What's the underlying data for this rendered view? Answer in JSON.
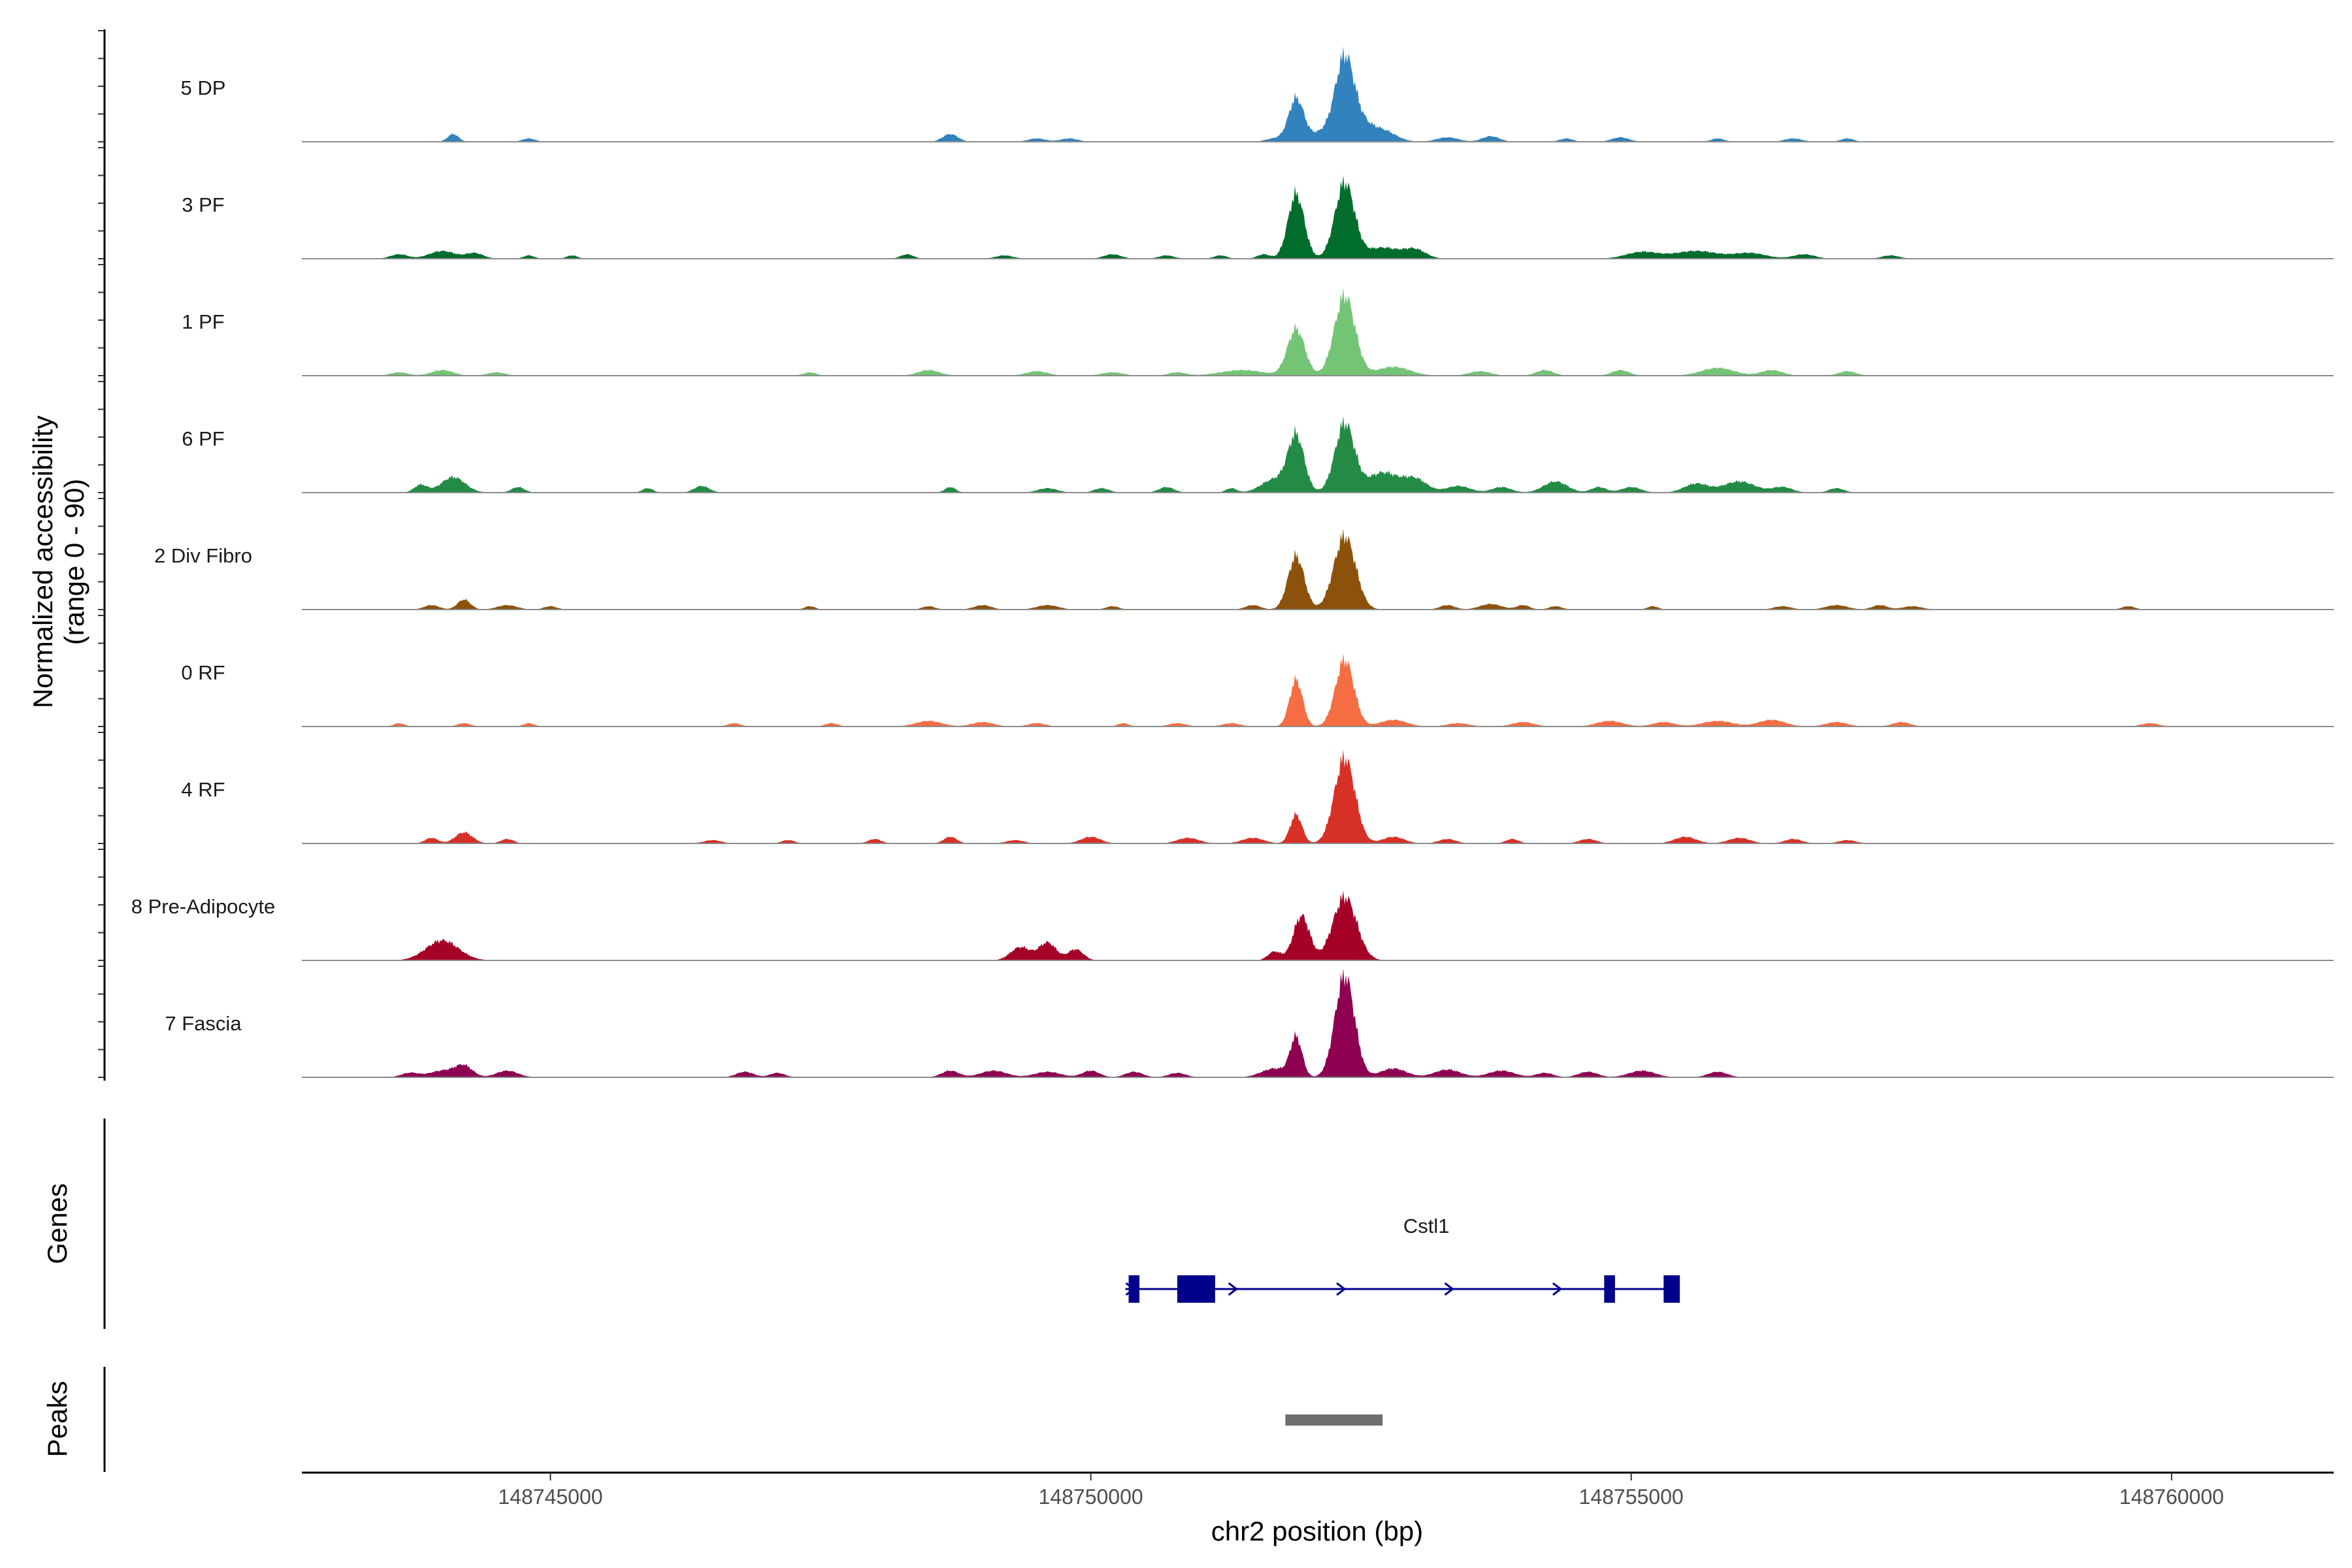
{
  "chart_data": {
    "type": "area",
    "region": "chr2:148742700-148761500",
    "xlim": [
      148742700,
      148761500
    ],
    "xlabel": "chr2 position (bp)",
    "xticks": [
      148745000,
      148750000,
      148755000,
      148760000
    ],
    "xtick_labels": [
      "148745000",
      "148750000",
      "148755000",
      "148760000"
    ],
    "ylabel_line1": "Normalized accessibility",
    "ylabel_line2": "(range 0 - 90)",
    "ylim": [
      0,
      90
    ],
    "tracks": [
      {
        "name": "5 DP",
        "color": "#3182bd",
        "peaks": [
          [
            148744100,
            0.07,
            50
          ],
          [
            148744800,
            0.03,
            60
          ],
          [
            148749800,
            0.03,
            80
          ],
          [
            148748700,
            0.07,
            70
          ],
          [
            148749500,
            0.03,
            80
          ],
          [
            148751700,
            0.03,
            80
          ],
          [
            148752200,
            0.1,
            150
          ],
          [
            148752500,
            0.13,
            100
          ],
          [
            148752700,
            0.1,
            120
          ],
          [
            148753300,
            0.04,
            100
          ],
          [
            148753700,
            0.05,
            80
          ],
          [
            148754400,
            0.03,
            60
          ],
          [
            148754900,
            0.04,
            80
          ],
          [
            148755800,
            0.03,
            60
          ],
          [
            148756500,
            0.03,
            80
          ],
          [
            148757000,
            0.03,
            60
          ]
        ],
        "mains": [
          [
            148751900,
            0.38,
            70
          ],
          [
            148752350,
            0.68,
            85
          ]
        ]
      },
      {
        "name": "3 PF",
        "color": "#006d2c",
        "peaks": [
          [
            148743600,
            0.04,
            80
          ],
          [
            148744000,
            0.07,
            120
          ],
          [
            148744300,
            0.05,
            80
          ],
          [
            148744800,
            0.03,
            50
          ],
          [
            148745200,
            0.03,
            50
          ],
          [
            148748300,
            0.04,
            60
          ],
          [
            148749200,
            0.03,
            80
          ],
          [
            148750200,
            0.04,
            80
          ],
          [
            148750700,
            0.03,
            70
          ],
          [
            148751200,
            0.03,
            60
          ],
          [
            148751600,
            0.04,
            60
          ],
          [
            148752700,
            0.1,
            150
          ],
          [
            148753000,
            0.08,
            100
          ],
          [
            148755100,
            0.06,
            150
          ],
          [
            148755600,
            0.07,
            200
          ],
          [
            148756100,
            0.05,
            150
          ],
          [
            148756600,
            0.04,
            100
          ],
          [
            148757400,
            0.03,
            80
          ]
        ],
        "mains": [
          [
            148751900,
            0.58,
            75
          ],
          [
            148752350,
            0.68,
            90
          ]
        ]
      },
      {
        "name": "1 PF",
        "color": "#74c476",
        "peaks": [
          [
            148743600,
            0.03,
            80
          ],
          [
            148744000,
            0.05,
            100
          ],
          [
            148744500,
            0.03,
            80
          ],
          [
            148747400,
            0.03,
            60
          ],
          [
            148748500,
            0.05,
            100
          ],
          [
            148749500,
            0.04,
            100
          ],
          [
            148750200,
            0.03,
            100
          ],
          [
            148750800,
            0.03,
            80
          ],
          [
            148751400,
            0.05,
            200
          ],
          [
            148752800,
            0.08,
            150
          ],
          [
            148753600,
            0.04,
            100
          ],
          [
            148754200,
            0.05,
            80
          ],
          [
            148754900,
            0.05,
            80
          ],
          [
            148755800,
            0.07,
            150
          ],
          [
            148756300,
            0.05,
            100
          ],
          [
            148757000,
            0.04,
            80
          ]
        ],
        "mains": [
          [
            148751900,
            0.42,
            80
          ],
          [
            148752350,
            0.72,
            95
          ]
        ]
      },
      {
        "name": "6 PF",
        "color": "#238b45",
        "peaks": [
          [
            148743800,
            0.07,
            60
          ],
          [
            148744100,
            0.14,
            110
          ],
          [
            148744700,
            0.05,
            60
          ],
          [
            148745900,
            0.04,
            50
          ],
          [
            148746400,
            0.06,
            70
          ],
          [
            148748700,
            0.05,
            50
          ],
          [
            148749600,
            0.04,
            90
          ],
          [
            148750100,
            0.04,
            70
          ],
          [
            148750700,
            0.05,
            70
          ],
          [
            148751300,
            0.04,
            50
          ],
          [
            148751700,
            0.12,
            120
          ],
          [
            148752700,
            0.18,
            140
          ],
          [
            148753000,
            0.12,
            110
          ],
          [
            148753400,
            0.06,
            110
          ],
          [
            148753800,
            0.05,
            90
          ],
          [
            148754300,
            0.1,
            110
          ],
          [
            148754700,
            0.05,
            70
          ],
          [
            148755000,
            0.05,
            90
          ],
          [
            148755600,
            0.08,
            110
          ],
          [
            148756000,
            0.1,
            150
          ],
          [
            148756400,
            0.05,
            90
          ],
          [
            148756900,
            0.04,
            70
          ]
        ],
        "mains": [
          [
            148751900,
            0.5,
            75
          ],
          [
            148752350,
            0.62,
            90
          ]
        ]
      },
      {
        "name": "2 Div Fibro",
        "color": "#8c510a",
        "peaks": [
          [
            148743900,
            0.04,
            70
          ],
          [
            148744200,
            0.09,
            60
          ],
          [
            148744600,
            0.04,
            90
          ],
          [
            148745000,
            0.03,
            60
          ],
          [
            148747400,
            0.03,
            50
          ],
          [
            148748500,
            0.03,
            60
          ],
          [
            148749000,
            0.04,
            80
          ],
          [
            148749600,
            0.04,
            100
          ],
          [
            148750200,
            0.03,
            60
          ],
          [
            148751500,
            0.04,
            70
          ],
          [
            148753300,
            0.04,
            70
          ],
          [
            148753700,
            0.05,
            100
          ],
          [
            148754000,
            0.04,
            60
          ],
          [
            148754300,
            0.03,
            60
          ],
          [
            148755200,
            0.03,
            50
          ],
          [
            148756400,
            0.03,
            80
          ],
          [
            148756900,
            0.04,
            100
          ],
          [
            148757300,
            0.04,
            70
          ],
          [
            148757600,
            0.03,
            90
          ],
          [
            148759600,
            0.03,
            60
          ]
        ],
        "mains": [
          [
            148751900,
            0.48,
            75
          ],
          [
            148752350,
            0.66,
            100
          ]
        ]
      },
      {
        "name": "0 RF",
        "color": "#f46d43",
        "peaks": [
          [
            148743600,
            0.03,
            50
          ],
          [
            148744200,
            0.03,
            60
          ],
          [
            148744800,
            0.03,
            50
          ],
          [
            148746700,
            0.03,
            60
          ],
          [
            148747600,
            0.03,
            60
          ],
          [
            148748500,
            0.05,
            120
          ],
          [
            148749000,
            0.04,
            100
          ],
          [
            148749500,
            0.03,
            80
          ],
          [
            148750300,
            0.03,
            50
          ],
          [
            148750800,
            0.03,
            80
          ],
          [
            148751300,
            0.03,
            80
          ],
          [
            148752800,
            0.06,
            120
          ],
          [
            148753400,
            0.03,
            100
          ],
          [
            148754000,
            0.04,
            100
          ],
          [
            148754800,
            0.05,
            120
          ],
          [
            148755300,
            0.04,
            100
          ],
          [
            148755800,
            0.05,
            140
          ],
          [
            148756300,
            0.06,
            120
          ],
          [
            148756900,
            0.04,
            100
          ],
          [
            148757500,
            0.04,
            80
          ],
          [
            148759800,
            0.03,
            80
          ]
        ],
        "mains": [
          [
            148751900,
            0.42,
            60
          ],
          [
            148752350,
            0.6,
            85
          ]
        ]
      },
      {
        "name": "4 RF",
        "color": "#d73027",
        "peaks": [
          [
            148743900,
            0.05,
            60
          ],
          [
            148744200,
            0.1,
            80
          ],
          [
            148744600,
            0.04,
            60
          ],
          [
            148746500,
            0.03,
            80
          ],
          [
            148747200,
            0.03,
            60
          ],
          [
            148748000,
            0.04,
            60
          ],
          [
            148748700,
            0.06,
            60
          ],
          [
            148749300,
            0.03,
            80
          ],
          [
            148750000,
            0.06,
            90
          ],
          [
            148750900,
            0.05,
            100
          ],
          [
            148751500,
            0.05,
            100
          ],
          [
            148752800,
            0.06,
            100
          ],
          [
            148753300,
            0.04,
            80
          ],
          [
            148753900,
            0.04,
            60
          ],
          [
            148754600,
            0.04,
            80
          ],
          [
            148755500,
            0.06,
            100
          ],
          [
            148756000,
            0.05,
            100
          ],
          [
            148756500,
            0.04,
            80
          ],
          [
            148757000,
            0.03,
            80
          ]
        ],
        "mains": [
          [
            148751900,
            0.26,
            55
          ],
          [
            148752350,
            0.77,
            95
          ]
        ]
      },
      {
        "name": "8 Pre-Adipocyte",
        "color": "#a50026",
        "peaks": [
          [
            148744000,
            0.18,
            150
          ],
          [
            148749350,
            0.12,
            90
          ],
          [
            148749600,
            0.16,
            80
          ],
          [
            148749860,
            0.1,
            70
          ],
          [
            148751700,
            0.08,
            60
          ]
        ],
        "mains": [
          [
            148751950,
            0.4,
            75
          ],
          [
            148752350,
            0.57,
            110
          ]
        ]
      },
      {
        "name": "7 Fascia",
        "color": "#8e0152",
        "peaks": [
          [
            148743700,
            0.04,
            80
          ],
          [
            148744000,
            0.06,
            120
          ],
          [
            148744200,
            0.1,
            80
          ],
          [
            148744600,
            0.06,
            100
          ],
          [
            148746800,
            0.05,
            80
          ],
          [
            148747100,
            0.04,
            70
          ],
          [
            148748700,
            0.06,
            80
          ],
          [
            148749100,
            0.06,
            120
          ],
          [
            148749600,
            0.05,
            120
          ],
          [
            148750000,
            0.06,
            80
          ],
          [
            148750400,
            0.05,
            80
          ],
          [
            148750800,
            0.04,
            80
          ],
          [
            148751700,
            0.08,
            120
          ],
          [
            148752800,
            0.08,
            120
          ],
          [
            148753300,
            0.07,
            120
          ],
          [
            148753800,
            0.06,
            120
          ],
          [
            148754200,
            0.04,
            80
          ],
          [
            148754600,
            0.05,
            90
          ],
          [
            148755100,
            0.06,
            120
          ],
          [
            148755800,
            0.05,
            90
          ]
        ],
        "mains": [
          [
            148751900,
            0.35,
            55
          ],
          [
            148752350,
            0.92,
            90
          ]
        ]
      }
    ],
    "genes_label": "Genes",
    "gene": {
      "name": "Cstl1",
      "start": 148750350,
      "end": 148755400,
      "strand": "+",
      "exons": [
        [
          148750350,
          148750450
        ],
        [
          148750800,
          148751150
        ],
        [
          148754750,
          148754850
        ],
        [
          148755300,
          148755450
        ]
      ],
      "arrows": [
        148750350,
        148751300,
        148752300,
        148753300,
        148754300
      ],
      "color": "#00008b"
    },
    "peaks_label": "Peaks",
    "called_peaks": [
      [
        148751800,
        148752700
      ]
    ],
    "peak_color": "#6e6e6e"
  }
}
